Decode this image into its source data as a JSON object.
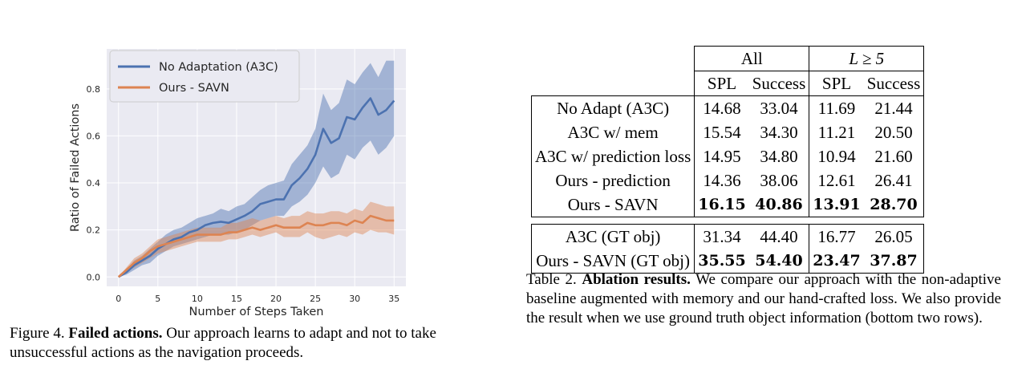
{
  "figure": {
    "caption_label": "Figure 4.",
    "caption_bold": "Failed actions.",
    "caption_text": "Our approach learns to adapt and not to take unsuccessful actions as the navigation proceeds."
  },
  "chart_data": {
    "type": "line",
    "xlabel": "Number of Steps Taken",
    "ylabel": "Ratio of Failed Actions",
    "xlim": [
      -1.5,
      36.5
    ],
    "ylim": [
      -0.04,
      0.97
    ],
    "xticks": [
      0,
      5,
      10,
      15,
      20,
      25,
      30,
      35
    ],
    "yticks": [
      0.0,
      0.2,
      0.4,
      0.6,
      0.8
    ],
    "ytick_labels": [
      "0.0",
      "0.2",
      "0.4",
      "0.6",
      "0.8"
    ],
    "grid": true,
    "legend_position": "top-left",
    "background": "#eaeaf2",
    "series": [
      {
        "name": "No Adaptation (A3C)",
        "color": "#4c72b0",
        "x": [
          0,
          1,
          2,
          3,
          4,
          5,
          6,
          7,
          8,
          9,
          10,
          11,
          12,
          13,
          14,
          15,
          16,
          17,
          18,
          19,
          20,
          21,
          22,
          23,
          24,
          25,
          26,
          27,
          28,
          29,
          30,
          31,
          32,
          33,
          34,
          35
        ],
        "values": [
          0.0,
          0.02,
          0.05,
          0.07,
          0.09,
          0.12,
          0.14,
          0.16,
          0.17,
          0.19,
          0.2,
          0.22,
          0.23,
          0.235,
          0.23,
          0.245,
          0.26,
          0.28,
          0.31,
          0.32,
          0.33,
          0.33,
          0.39,
          0.42,
          0.46,
          0.52,
          0.63,
          0.57,
          0.59,
          0.68,
          0.67,
          0.72,
          0.76,
          0.69,
          0.71,
          0.75
        ],
        "lower": [
          0.0,
          0.01,
          0.03,
          0.05,
          0.06,
          0.09,
          0.11,
          0.13,
          0.14,
          0.15,
          0.16,
          0.17,
          0.18,
          0.18,
          0.18,
          0.19,
          0.2,
          0.22,
          0.24,
          0.25,
          0.26,
          0.26,
          0.3,
          0.32,
          0.35,
          0.4,
          0.47,
          0.42,
          0.44,
          0.52,
          0.5,
          0.55,
          0.58,
          0.52,
          0.55,
          0.6
        ],
        "upper": [
          0.0,
          0.03,
          0.07,
          0.09,
          0.12,
          0.15,
          0.18,
          0.2,
          0.21,
          0.23,
          0.25,
          0.26,
          0.27,
          0.29,
          0.28,
          0.3,
          0.31,
          0.34,
          0.37,
          0.39,
          0.4,
          0.41,
          0.48,
          0.52,
          0.56,
          0.63,
          0.78,
          0.71,
          0.74,
          0.84,
          0.82,
          0.87,
          0.91,
          0.85,
          0.92,
          0.92
        ]
      },
      {
        "name": "Ours - SAVN",
        "color": "#dd8452",
        "x": [
          0,
          1,
          2,
          3,
          4,
          5,
          6,
          7,
          8,
          9,
          10,
          11,
          12,
          13,
          14,
          15,
          16,
          17,
          18,
          19,
          20,
          21,
          22,
          23,
          24,
          25,
          26,
          27,
          28,
          29,
          30,
          31,
          32,
          33,
          34,
          35
        ],
        "values": [
          0.0,
          0.03,
          0.06,
          0.08,
          0.11,
          0.13,
          0.14,
          0.15,
          0.16,
          0.17,
          0.18,
          0.18,
          0.18,
          0.18,
          0.19,
          0.19,
          0.2,
          0.21,
          0.2,
          0.21,
          0.22,
          0.21,
          0.21,
          0.21,
          0.23,
          0.22,
          0.22,
          0.23,
          0.23,
          0.22,
          0.24,
          0.23,
          0.26,
          0.25,
          0.24,
          0.24
        ],
        "lower": [
          0.0,
          0.02,
          0.04,
          0.06,
          0.08,
          0.1,
          0.11,
          0.12,
          0.13,
          0.14,
          0.15,
          0.15,
          0.15,
          0.15,
          0.16,
          0.16,
          0.17,
          0.18,
          0.17,
          0.18,
          0.19,
          0.17,
          0.17,
          0.17,
          0.19,
          0.17,
          0.16,
          0.17,
          0.18,
          0.17,
          0.19,
          0.18,
          0.2,
          0.19,
          0.19,
          0.18
        ],
        "upper": [
          0.0,
          0.04,
          0.08,
          0.1,
          0.13,
          0.16,
          0.17,
          0.18,
          0.19,
          0.2,
          0.21,
          0.21,
          0.21,
          0.21,
          0.23,
          0.23,
          0.24,
          0.25,
          0.24,
          0.25,
          0.26,
          0.25,
          0.26,
          0.26,
          0.28,
          0.27,
          0.27,
          0.28,
          0.28,
          0.27,
          0.29,
          0.28,
          0.32,
          0.31,
          0.3,
          0.3
        ]
      }
    ]
  },
  "table": {
    "caption_label": "Table 2.",
    "caption_bold": "Ablation results.",
    "caption_text": "We compare our approach with the non-adaptive baseline augmented with memory and our hand-crafted loss. We also provide the result when we use ground truth object information (bottom two rows).",
    "group_all": "All",
    "group_l5": "L ≥ 5",
    "col_spl": "SPL",
    "col_success": "Success",
    "rows": [
      {
        "name": "No Adapt (A3C)",
        "v": [
          "14.68",
          "33.04",
          "11.69",
          "21.44"
        ]
      },
      {
        "name": "A3C w/ mem",
        "v": [
          "15.54",
          "34.30",
          "11.21",
          "20.50"
        ]
      },
      {
        "name": "A3C w/ prediction loss",
        "v": [
          "14.95",
          "34.80",
          "10.94",
          "21.60"
        ]
      },
      {
        "name": "Ours - prediction",
        "v": [
          "14.36",
          "38.06",
          "12.61",
          "26.41"
        ]
      },
      {
        "name": "Ours - SAVN",
        "v": [
          "16.15",
          "40.86",
          "13.91",
          "28.70"
        ]
      },
      {
        "name": "A3C (GT obj)",
        "v": [
          "31.34",
          "44.40",
          "16.77",
          "26.05"
        ]
      },
      {
        "name": "Ours - SAVN (GT obj)",
        "v": [
          "35.55",
          "54.40",
          "23.47",
          "37.87"
        ]
      }
    ]
  }
}
